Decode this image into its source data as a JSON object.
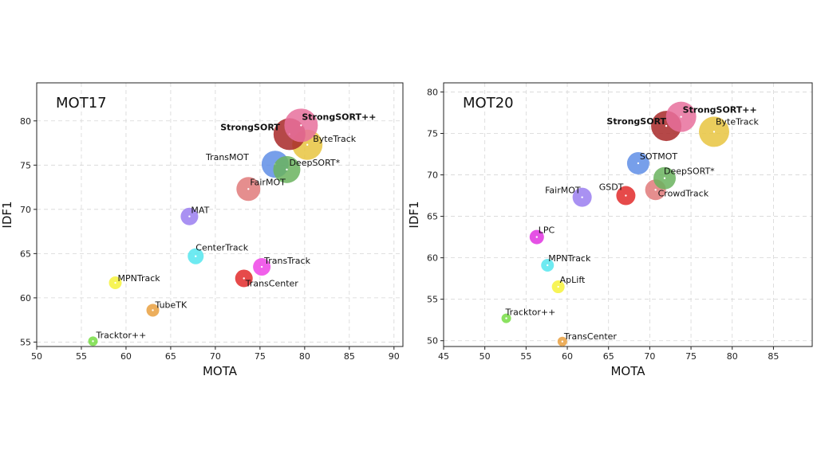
{
  "chart_data": [
    {
      "type": "scatter",
      "title": "MOT17",
      "xlabel": "MOTA",
      "ylabel": "IDF1",
      "xlim": [
        50,
        91
      ],
      "ylim": [
        54.5,
        84.3
      ],
      "xticks": [
        50,
        55,
        60,
        65,
        70,
        75,
        80,
        85,
        90
      ],
      "yticks": [
        55,
        60,
        65,
        70,
        75,
        80
      ],
      "grid": true,
      "points": [
        {
          "label": "Tracktor++",
          "x": 56.3,
          "y": 55.1,
          "size": 6,
          "color": "#77dd44",
          "bold": false
        },
        {
          "label": "MPNTrack",
          "x": 58.8,
          "y": 61.7,
          "size": 8,
          "color": "#f6f23a",
          "bold": false
        },
        {
          "label": "TubeTK",
          "x": 63.0,
          "y": 58.6,
          "size": 8,
          "color": "#e9a040",
          "bold": false
        },
        {
          "label": "CenterTrack",
          "x": 67.8,
          "y": 64.7,
          "size": 10,
          "color": "#55e6ee",
          "bold": false
        },
        {
          "label": "MAT",
          "x": 67.1,
          "y": 69.2,
          "size": 11,
          "color": "#9a7ef0",
          "bold": false
        },
        {
          "label": "TransTrack",
          "x": 75.2,
          "y": 63.5,
          "size": 11,
          "color": "#ee44e6",
          "bold": false
        },
        {
          "label": "TransCenter",
          "x": 73.2,
          "y": 62.2,
          "size": 11,
          "color": "#e22a2a",
          "bold": false
        },
        {
          "label": "FairMOT",
          "x": 73.7,
          "y": 72.3,
          "size": 15,
          "color": "#e07a7a",
          "bold": false
        },
        {
          "label": "TransMOT",
          "x": 76.7,
          "y": 75.1,
          "size": 17,
          "color": "#5f8ee6",
          "bold": false
        },
        {
          "label": "DeepSORT*",
          "x": 78.0,
          "y": 74.5,
          "size": 17,
          "color": "#6ab35e",
          "bold": false
        },
        {
          "label": "ByteTrack",
          "x": 80.3,
          "y": 77.3,
          "size": 19,
          "color": "#e8c440",
          "bold": false
        },
        {
          "label": "StrongSORT",
          "x": 78.3,
          "y": 78.5,
          "size": 20,
          "color": "#a82828",
          "bold": true
        },
        {
          "label": "StrongSORT++",
          "x": 79.6,
          "y": 79.5,
          "size": 21,
          "color": "#e8709c",
          "bold": true
        }
      ]
    },
    {
      "type": "scatter",
      "title": "MOT20",
      "xlabel": "MOTA",
      "ylabel": "IDF1",
      "xlim": [
        45,
        89.7
      ],
      "ylim": [
        49.3,
        81.1
      ],
      "xticks": [
        45,
        50,
        55,
        60,
        65,
        70,
        75,
        80,
        85
      ],
      "yticks": [
        50,
        55,
        60,
        65,
        70,
        75,
        80
      ],
      "grid": true,
      "points": [
        {
          "label": "Tracktor++",
          "x": 52.6,
          "y": 52.7,
          "size": 6,
          "color": "#77dd44",
          "bold": false
        },
        {
          "label": "TransCenter",
          "x": 59.4,
          "y": 49.9,
          "size": 6,
          "color": "#e9a040",
          "bold": false
        },
        {
          "label": "ApLift",
          "x": 58.9,
          "y": 56.5,
          "size": 8,
          "color": "#f6f23a",
          "bold": false
        },
        {
          "label": "MPNTrack",
          "x": 57.6,
          "y": 59.1,
          "size": 8,
          "color": "#55e6ee",
          "bold": false
        },
        {
          "label": "LPC",
          "x": 56.3,
          "y": 62.5,
          "size": 9,
          "color": "#e033e0",
          "bold": false
        },
        {
          "label": "FairMOT",
          "x": 61.8,
          "y": 67.3,
          "size": 12,
          "color": "#9a7ef0",
          "bold": false
        },
        {
          "label": "GSDT",
          "x": 67.1,
          "y": 67.5,
          "size": 12,
          "color": "#e22a2a",
          "bold": false
        },
        {
          "label": "CrowdTrack",
          "x": 70.7,
          "y": 68.2,
          "size": 13,
          "color": "#e07a7a",
          "bold": false
        },
        {
          "label": "DeepSORT*",
          "x": 71.8,
          "y": 69.6,
          "size": 14,
          "color": "#6ab35e",
          "bold": false
        },
        {
          "label": "SOTMOT",
          "x": 68.6,
          "y": 71.4,
          "size": 14,
          "color": "#5f8ee6",
          "bold": false
        },
        {
          "label": "ByteTrack",
          "x": 77.8,
          "y": 75.2,
          "size": 19,
          "color": "#e8c440",
          "bold": false
        },
        {
          "label": "StrongSORT",
          "x": 72.0,
          "y": 75.9,
          "size": 19,
          "color": "#a82828",
          "bold": true
        },
        {
          "label": "StrongSORT++",
          "x": 73.8,
          "y": 77.0,
          "size": 19,
          "color": "#e8709c",
          "bold": true
        }
      ]
    }
  ]
}
